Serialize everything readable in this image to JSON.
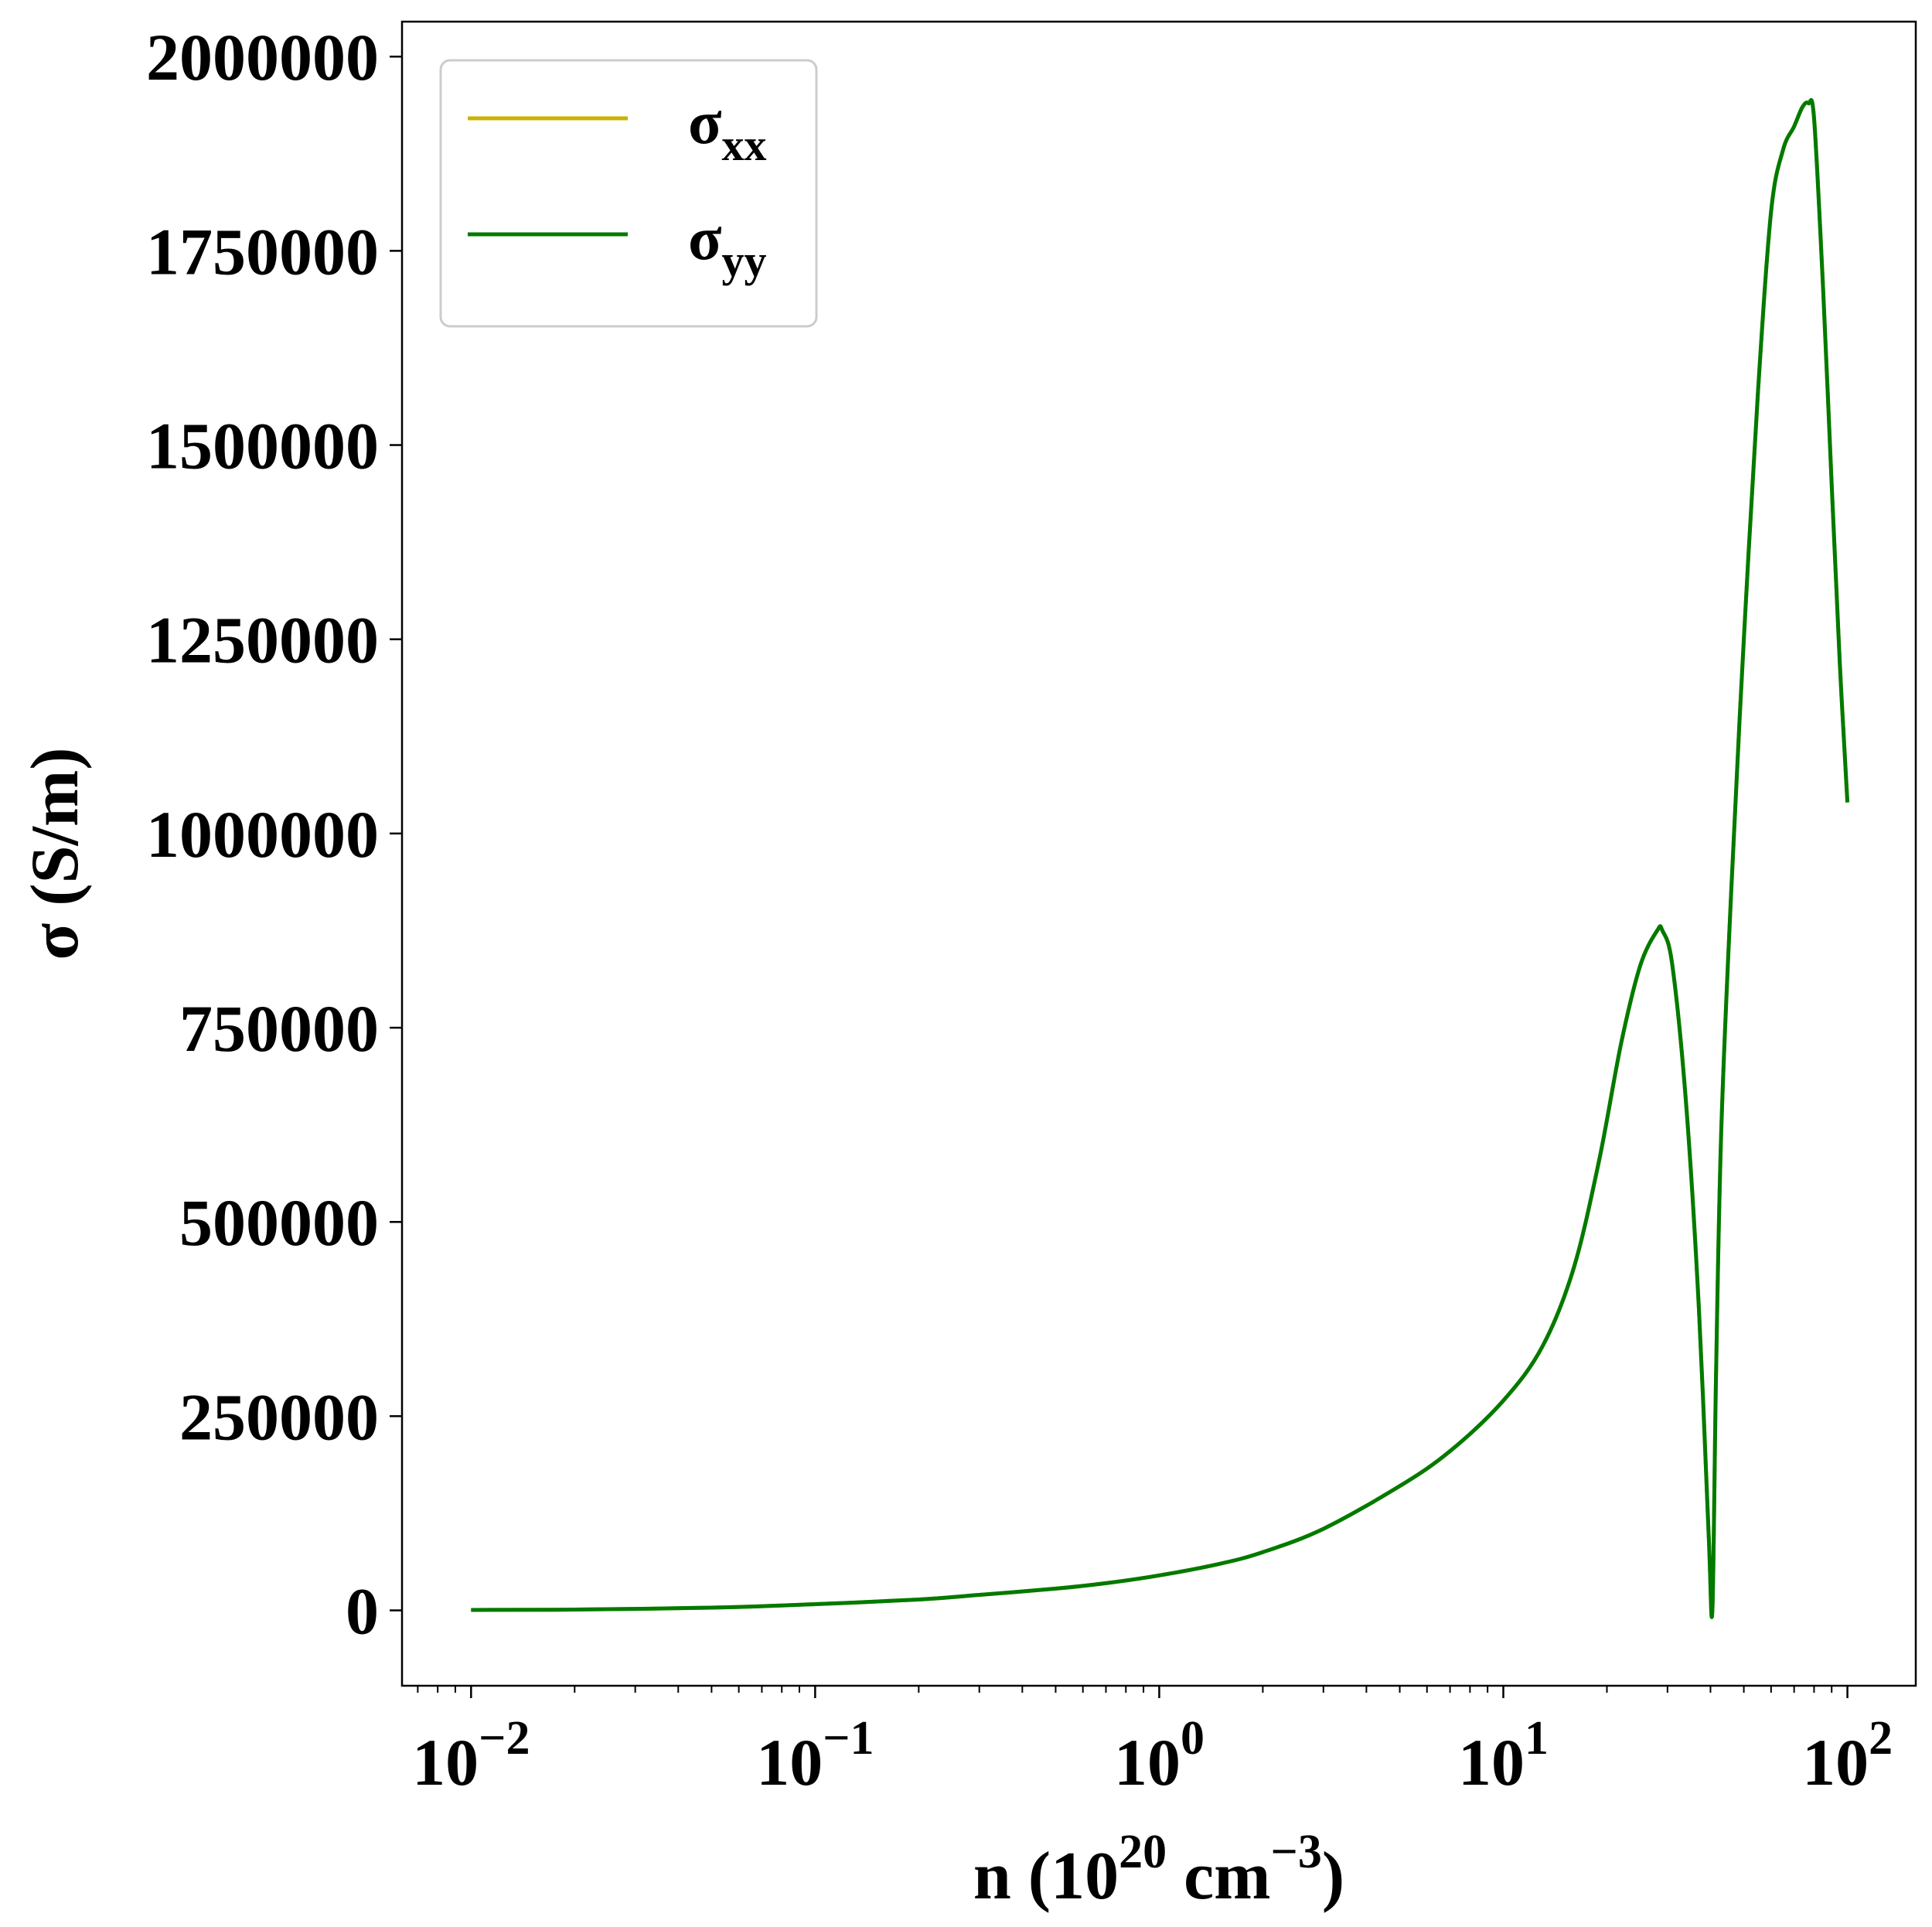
{
  "chart_data": {
    "type": "line",
    "xscale": "log",
    "xlabel": {
      "base": "n (10",
      "sup1": "20",
      "mid": " cm",
      "sup2": "−3",
      "end": ")"
    },
    "ylabel": "σ (S/m)",
    "xlim": [
      0.0063,
      158
    ],
    "ylim": [
      -97000,
      2045000
    ],
    "grid": false,
    "legend_position": "top-left",
    "xticks": [
      {
        "value": 0.01,
        "base": "10",
        "exp": "−2"
      },
      {
        "value": 0.1,
        "base": "10",
        "exp": "−1"
      },
      {
        "value": 1,
        "base": "10",
        "exp": "0"
      },
      {
        "value": 10,
        "base": "10",
        "exp": "1"
      },
      {
        "value": 100,
        "base": "10",
        "exp": "2"
      }
    ],
    "yticks": [
      {
        "value": 0,
        "label": "0"
      },
      {
        "value": 250000,
        "label": "250000"
      },
      {
        "value": 500000,
        "label": "500000"
      },
      {
        "value": 750000,
        "label": "750000"
      },
      {
        "value": 1000000,
        "label": "1000000"
      },
      {
        "value": 1250000,
        "label": "1250000"
      },
      {
        "value": 1500000,
        "label": "1500000"
      },
      {
        "value": 1750000,
        "label": "1750000"
      },
      {
        "value": 2000000,
        "label": "2000000"
      }
    ],
    "series": [
      {
        "name": "σxx",
        "label_base": "σ",
        "label_sub": "xx",
        "color": "#c8b400",
        "x": [
          0.01,
          0.02,
          0.05,
          0.1,
          0.2,
          0.3,
          0.5,
          0.7,
          1,
          1.5,
          2,
          3,
          5,
          7,
          10,
          13,
          16,
          19,
          22,
          25,
          28,
          29,
          31,
          34,
          37,
          39.5,
          40.5,
          41.5,
          43,
          46,
          50,
          55,
          60,
          65,
          70,
          74,
          77,
          80,
          85,
          90,
          95,
          100
        ],
        "y": [
          500,
          1000,
          3500,
          8000,
          14000,
          20000,
          28000,
          35000,
          45000,
          60000,
          75000,
          105000,
          160000,
          205000,
          270000,
          340000,
          440000,
          580000,
          730000,
          830000,
          875000,
          875000,
          830000,
          650000,
          390000,
          100000,
          0,
          300000,
          620000,
          930000,
          1250000,
          1570000,
          1800000,
          1880000,
          1910000,
          1935000,
          1940000,
          1920000,
          1700000,
          1450000,
          1220000,
          1040000
        ]
      },
      {
        "name": "σyy",
        "label_base": "σ",
        "label_sub": "yy",
        "color": "#007a00",
        "x": [
          0.01,
          0.02,
          0.05,
          0.1,
          0.2,
          0.3,
          0.5,
          0.7,
          1,
          1.5,
          2,
          3,
          5,
          7,
          10,
          13,
          16,
          19,
          22,
          25,
          28,
          29,
          31,
          34,
          37,
          39.5,
          40.5,
          41.5,
          43,
          46,
          50,
          55,
          60,
          65,
          70,
          74,
          77,
          80,
          85,
          90,
          95,
          100
        ],
        "y": [
          500,
          1000,
          3500,
          8000,
          14000,
          20000,
          28000,
          35000,
          45000,
          60000,
          75000,
          105000,
          160000,
          205000,
          270000,
          340000,
          440000,
          580000,
          730000,
          830000,
          875000,
          875000,
          830000,
          650000,
          390000,
          100000,
          0,
          300000,
          620000,
          930000,
          1250000,
          1570000,
          1800000,
          1880000,
          1910000,
          1935000,
          1940000,
          1920000,
          1700000,
          1450000,
          1220000,
          1040000
        ]
      }
    ]
  }
}
